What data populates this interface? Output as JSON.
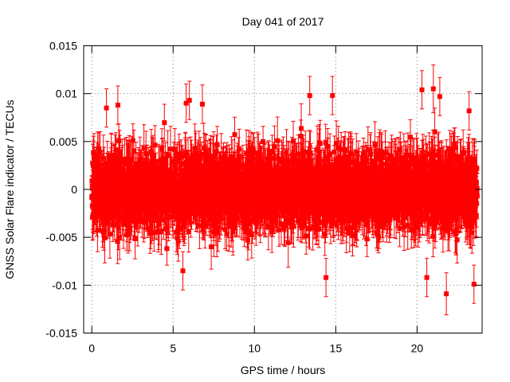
{
  "chart_data": {
    "type": "scatter",
    "title": "Day 041 of 2017",
    "xlabel": "GPS time / hours",
    "ylabel": "GNSS Solar Flare indicator / TECUs",
    "xlim": [
      -0.5,
      24
    ],
    "ylim": [
      -0.015,
      0.015
    ],
    "xticks": [
      0,
      5,
      10,
      15,
      20
    ],
    "xtick_labels": [
      "0",
      "5",
      "10",
      "15",
      "20"
    ],
    "yticks": [
      -0.015,
      -0.01,
      -0.005,
      0,
      0.005,
      0.01,
      0.015
    ],
    "ytick_labels": [
      "-0.015",
      "-0.01",
      "-0.005",
      "0",
      "0.005",
      "0.01",
      "0.015"
    ],
    "grid": true,
    "series": [
      {
        "name": "GNSS Solar Flare indicator",
        "color": "#ff0000",
        "marker": "square",
        "error_bars": true,
        "x_range": [
          0,
          23.7
        ],
        "n_points": 2880,
        "value_band": [
          -0.008,
          0.008
        ],
        "typical_error": 0.002,
        "notable_points": [
          {
            "x": 0.9,
            "y": 0.0085,
            "err": 0.002
          },
          {
            "x": 1.6,
            "y": 0.0088,
            "err": 0.002
          },
          {
            "x": 5.6,
            "y": -0.0085,
            "err": 0.002
          },
          {
            "x": 5.8,
            "y": 0.009,
            "err": 0.002
          },
          {
            "x": 6.0,
            "y": 0.0093,
            "err": 0.002
          },
          {
            "x": 6.8,
            "y": 0.0089,
            "err": 0.002
          },
          {
            "x": 13.4,
            "y": 0.0098,
            "err": 0.002
          },
          {
            "x": 14.4,
            "y": -0.0092,
            "err": 0.002
          },
          {
            "x": 14.8,
            "y": 0.0098,
            "err": 0.002
          },
          {
            "x": 20.3,
            "y": 0.0104,
            "err": 0.002
          },
          {
            "x": 21.0,
            "y": 0.0105,
            "err": 0.0025
          },
          {
            "x": 21.4,
            "y": 0.0097,
            "err": 0.002
          },
          {
            "x": 20.6,
            "y": -0.0092,
            "err": 0.002
          },
          {
            "x": 21.8,
            "y": -0.0109,
            "err": 0.0022
          },
          {
            "x": 23.5,
            "y": -0.0099,
            "err": 0.002
          },
          {
            "x": 23.2,
            "y": 0.0082,
            "err": 0.002
          }
        ]
      }
    ]
  }
}
